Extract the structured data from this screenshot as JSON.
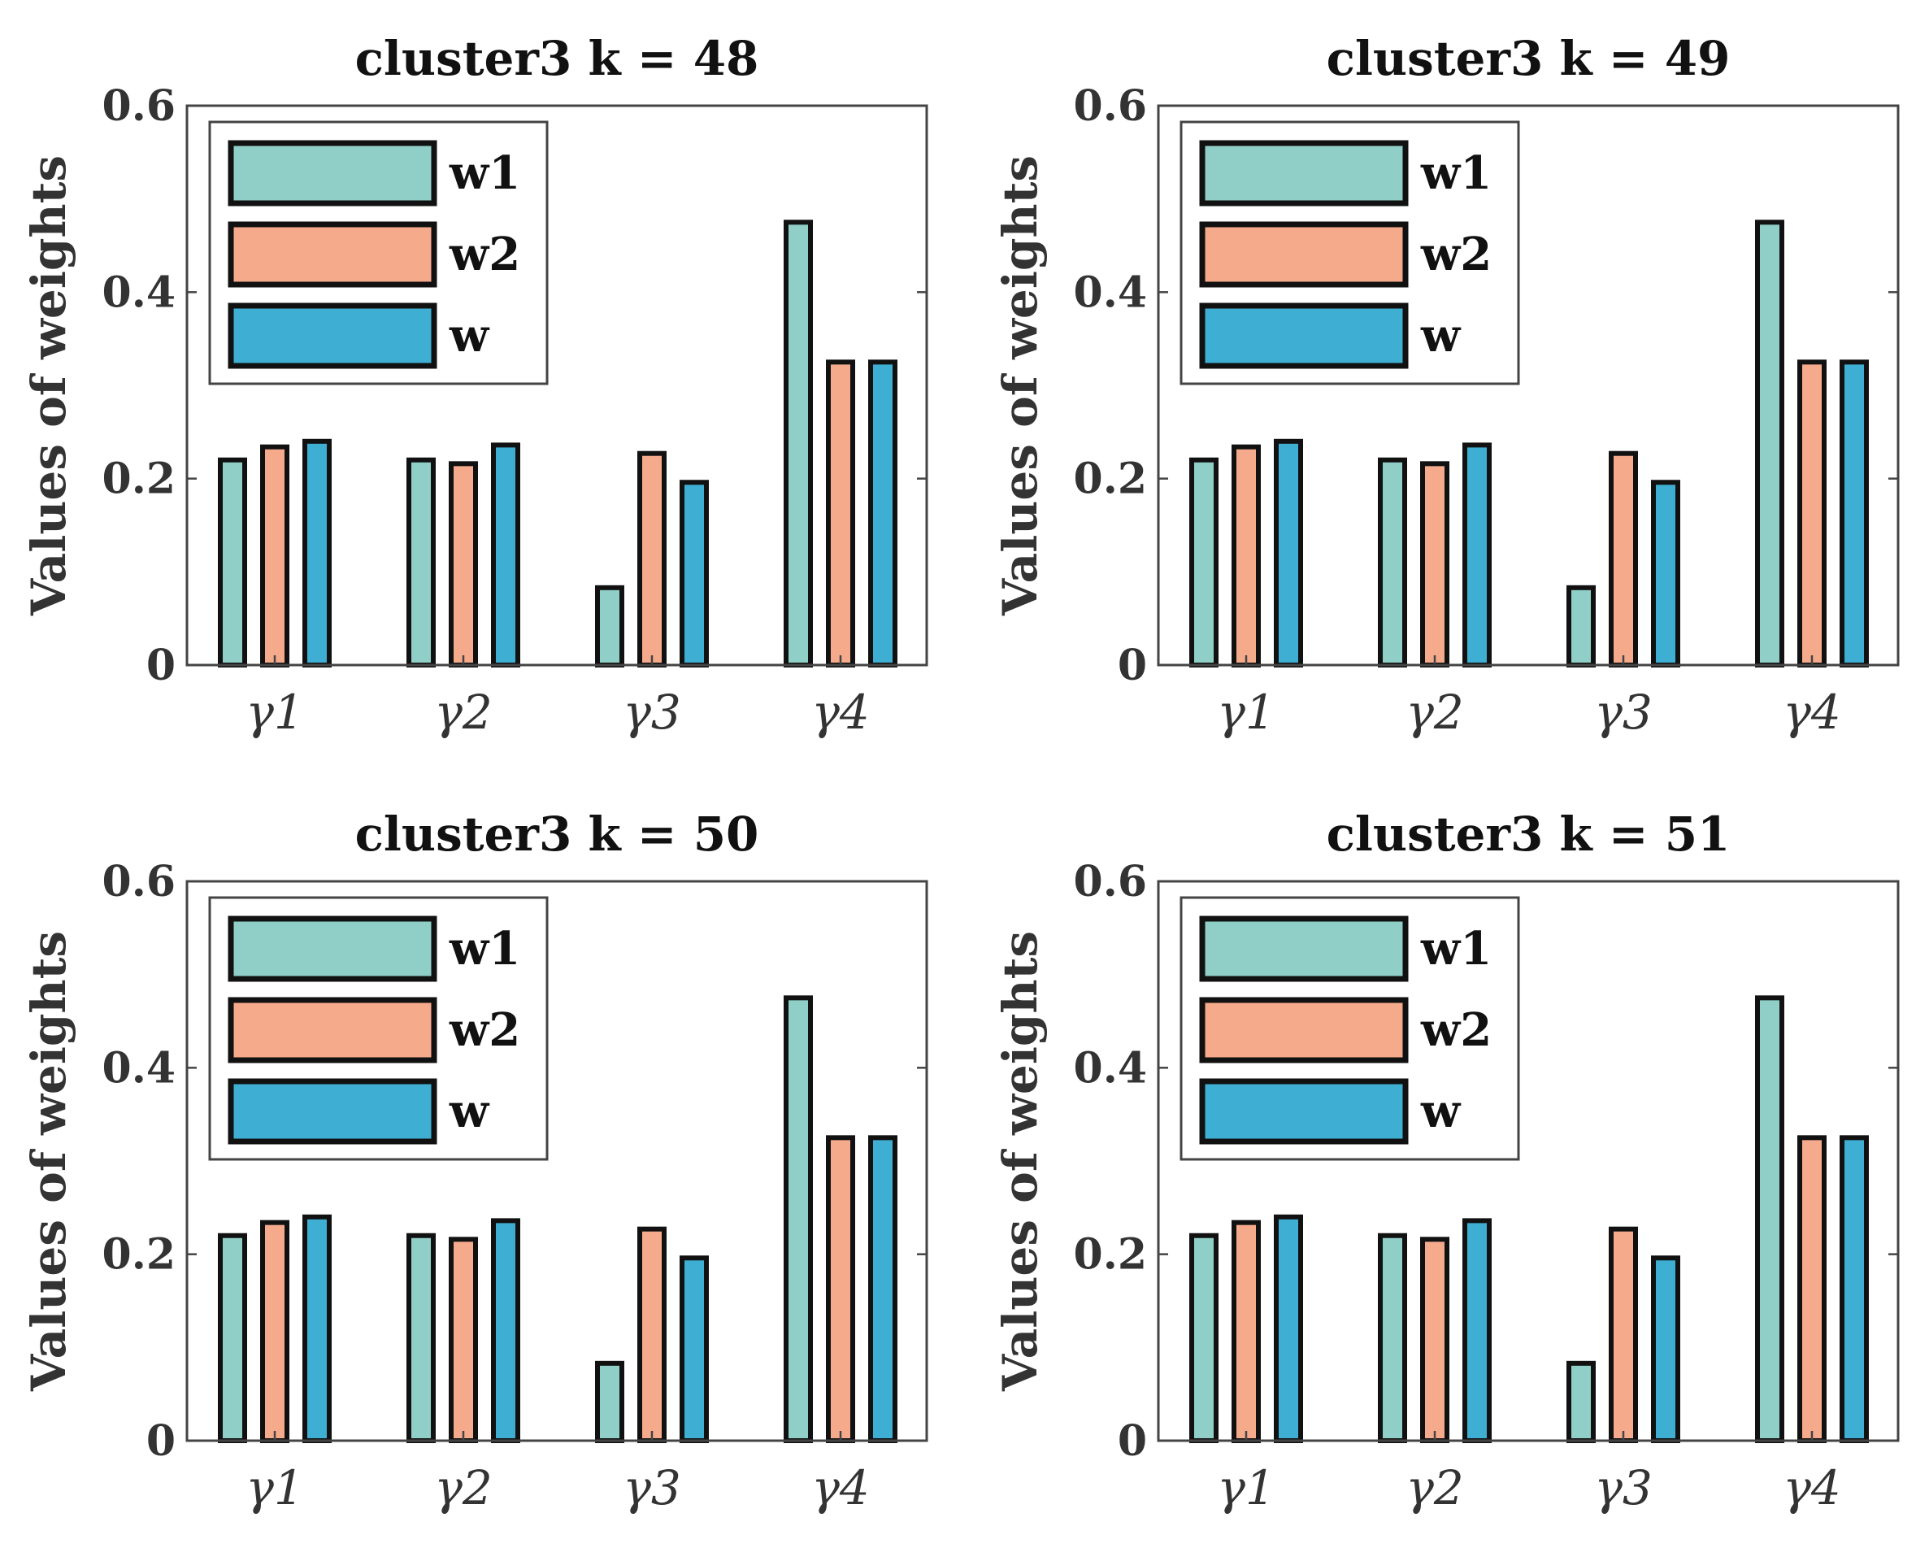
{
  "chart_data": [
    {
      "type": "bar",
      "title": "cluster3  k = 48",
      "ylabel": "Values of weights",
      "xlabel": "",
      "categories": [
        "γ1",
        "γ2",
        "γ3",
        "γ4"
      ],
      "ylim": [
        0,
        0.6
      ],
      "yticks": [
        "0",
        "0.2",
        "0.4",
        "0.6"
      ],
      "legend_position": "top-left",
      "series": [
        {
          "name": "w1",
          "color": "#8fcfc7",
          "values": [
            0.22,
            0.22,
            0.083,
            0.475
          ]
        },
        {
          "name": "w2",
          "color": "#f6aa8c",
          "values": [
            0.234,
            0.216,
            0.227,
            0.325
          ]
        },
        {
          "name": "w",
          "color": "#3eaed3",
          "values": [
            0.24,
            0.236,
            0.196,
            0.325
          ]
        }
      ]
    },
    {
      "type": "bar",
      "title": "cluster3  k = 49",
      "ylabel": "Values of weights",
      "xlabel": "",
      "categories": [
        "γ1",
        "γ2",
        "γ3",
        "γ4"
      ],
      "ylim": [
        0,
        0.6
      ],
      "yticks": [
        "0",
        "0.2",
        "0.4",
        "0.6"
      ],
      "legend_position": "top-left",
      "series": [
        {
          "name": "w1",
          "color": "#8fcfc7",
          "values": [
            0.22,
            0.22,
            0.083,
            0.475
          ]
        },
        {
          "name": "w2",
          "color": "#f6aa8c",
          "values": [
            0.234,
            0.216,
            0.227,
            0.325
          ]
        },
        {
          "name": "w",
          "color": "#3eaed3",
          "values": [
            0.24,
            0.236,
            0.196,
            0.325
          ]
        }
      ]
    },
    {
      "type": "bar",
      "title": "cluster3  k = 50",
      "ylabel": "Values of weights",
      "xlabel": "",
      "categories": [
        "γ1",
        "γ2",
        "γ3",
        "γ4"
      ],
      "ylim": [
        0,
        0.6
      ],
      "yticks": [
        "0",
        "0.2",
        "0.4",
        "0.6"
      ],
      "legend_position": "top-left",
      "series": [
        {
          "name": "w1",
          "color": "#8fcfc7",
          "values": [
            0.22,
            0.22,
            0.083,
            0.475
          ]
        },
        {
          "name": "w2",
          "color": "#f6aa8c",
          "values": [
            0.234,
            0.216,
            0.227,
            0.325
          ]
        },
        {
          "name": "w",
          "color": "#3eaed3",
          "values": [
            0.24,
            0.236,
            0.196,
            0.325
          ]
        }
      ]
    },
    {
      "type": "bar",
      "title": "cluster3  k = 51",
      "ylabel": "Values of weights",
      "xlabel": "",
      "categories": [
        "γ1",
        "γ2",
        "γ3",
        "γ4"
      ],
      "ylim": [
        0,
        0.6
      ],
      "yticks": [
        "0",
        "0.2",
        "0.4",
        "0.6"
      ],
      "legend_position": "top-left",
      "series": [
        {
          "name": "w1",
          "color": "#8fcfc7",
          "values": [
            0.22,
            0.22,
            0.083,
            0.475
          ]
        },
        {
          "name": "w2",
          "color": "#f6aa8c",
          "values": [
            0.234,
            0.216,
            0.227,
            0.325
          ]
        },
        {
          "name": "w",
          "color": "#3eaed3",
          "values": [
            0.24,
            0.236,
            0.196,
            0.325
          ]
        }
      ]
    }
  ]
}
